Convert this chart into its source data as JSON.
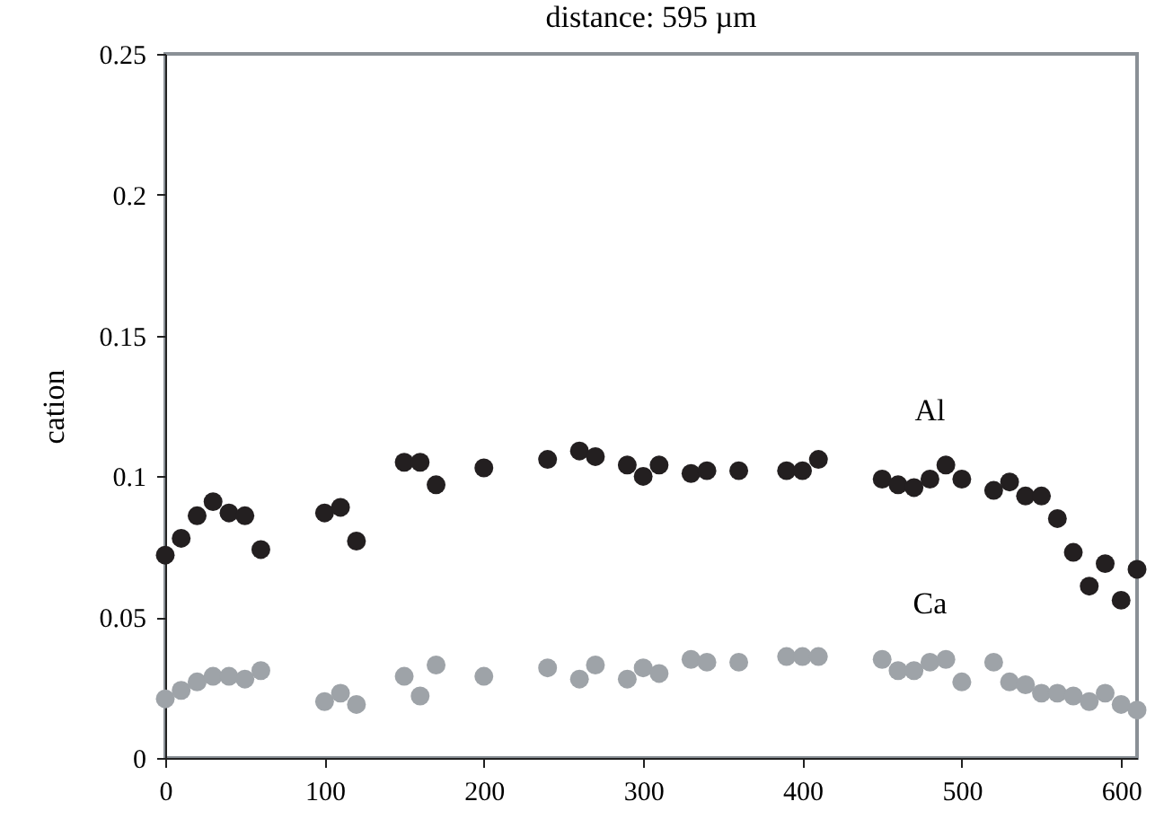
{
  "chart_data": {
    "type": "scatter",
    "title": "distance: 595 µm",
    "ylabel": "cation",
    "xlim": [
      0,
      610
    ],
    "xticks": [
      0,
      100,
      200,
      300,
      400,
      500,
      600
    ],
    "ylim": [
      0,
      0.25
    ],
    "yticks": [
      0,
      0.05,
      0.1,
      0.15,
      0.2,
      0.25
    ],
    "marker": "circle",
    "series": [
      {
        "name": "Al",
        "color": "#231f20",
        "x": [
          0,
          10,
          20,
          30,
          40,
          50,
          60,
          100,
          110,
          120,
          150,
          160,
          170,
          200,
          240,
          260,
          270,
          290,
          300,
          310,
          330,
          340,
          360,
          390,
          400,
          410,
          450,
          460,
          470,
          480,
          490,
          500,
          520,
          530,
          540,
          550,
          560,
          570,
          580,
          590,
          600,
          610
        ],
        "values": [
          0.072,
          0.078,
          0.086,
          0.091,
          0.087,
          0.086,
          0.074,
          0.087,
          0.089,
          0.077,
          0.105,
          0.105,
          0.097,
          0.103,
          0.106,
          0.109,
          0.107,
          0.104,
          0.1,
          0.104,
          0.101,
          0.102,
          0.102,
          0.102,
          0.102,
          0.106,
          0.099,
          0.097,
          0.096,
          0.099,
          0.104,
          0.099,
          0.095,
          0.098,
          0.093,
          0.093,
          0.085,
          0.073,
          0.061,
          0.069,
          0.056,
          0.067
        ]
      },
      {
        "name": "Ca",
        "color": "#9ea3a8",
        "x": [
          0,
          10,
          20,
          30,
          40,
          50,
          60,
          100,
          110,
          120,
          150,
          160,
          170,
          200,
          240,
          260,
          270,
          290,
          300,
          310,
          330,
          340,
          360,
          390,
          400,
          410,
          450,
          460,
          470,
          480,
          490,
          500,
          520,
          530,
          540,
          550,
          560,
          570,
          580,
          590,
          600,
          610
        ],
        "values": [
          0.021,
          0.024,
          0.027,
          0.029,
          0.029,
          0.028,
          0.031,
          0.02,
          0.023,
          0.019,
          0.029,
          0.022,
          0.033,
          0.029,
          0.032,
          0.028,
          0.033,
          0.028,
          0.032,
          0.03,
          0.035,
          0.034,
          0.034,
          0.036,
          0.036,
          0.036,
          0.035,
          0.031,
          0.031,
          0.034,
          0.035,
          0.027,
          0.034,
          0.027,
          0.026,
          0.023,
          0.023,
          0.022,
          0.02,
          0.023,
          0.019,
          0.017
        ]
      }
    ]
  }
}
